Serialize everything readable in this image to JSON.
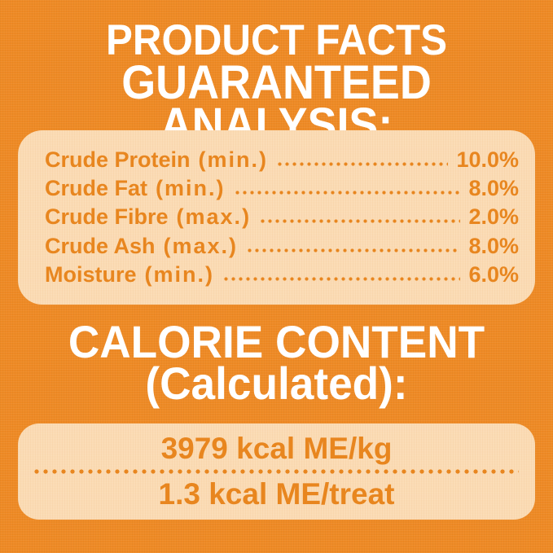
{
  "theme": {
    "background": "#EE8A25",
    "panel": "#FBDBB4",
    "accent": "#E8861F",
    "title": "#FFFFFF"
  },
  "header": {
    "line1": "PRODUCT FACTS",
    "line2": "GUARANTEED ANALYSIS:"
  },
  "guaranteed_analysis": {
    "rows": [
      {
        "label": "Crude Protein",
        "qualifier": "(min.)",
        "value": "10.0%"
      },
      {
        "label": "Crude Fat",
        "qualifier": "(min.)",
        "value": "8.0%"
      },
      {
        "label": "Crude Fibre",
        "qualifier": "(max.)",
        "value": "2.0%"
      },
      {
        "label": "Crude Ash",
        "qualifier": "(max.)",
        "value": "8.0%"
      },
      {
        "label": "Moisture",
        "qualifier": "(min.)",
        "value": "6.0%"
      }
    ]
  },
  "calorie_content": {
    "title_line1": "CALORIE CONTENT",
    "title_line2": "(Calculated):",
    "per_kg": "3979 kcal ME/kg",
    "per_treat": "1.3 kcal ME/treat"
  }
}
